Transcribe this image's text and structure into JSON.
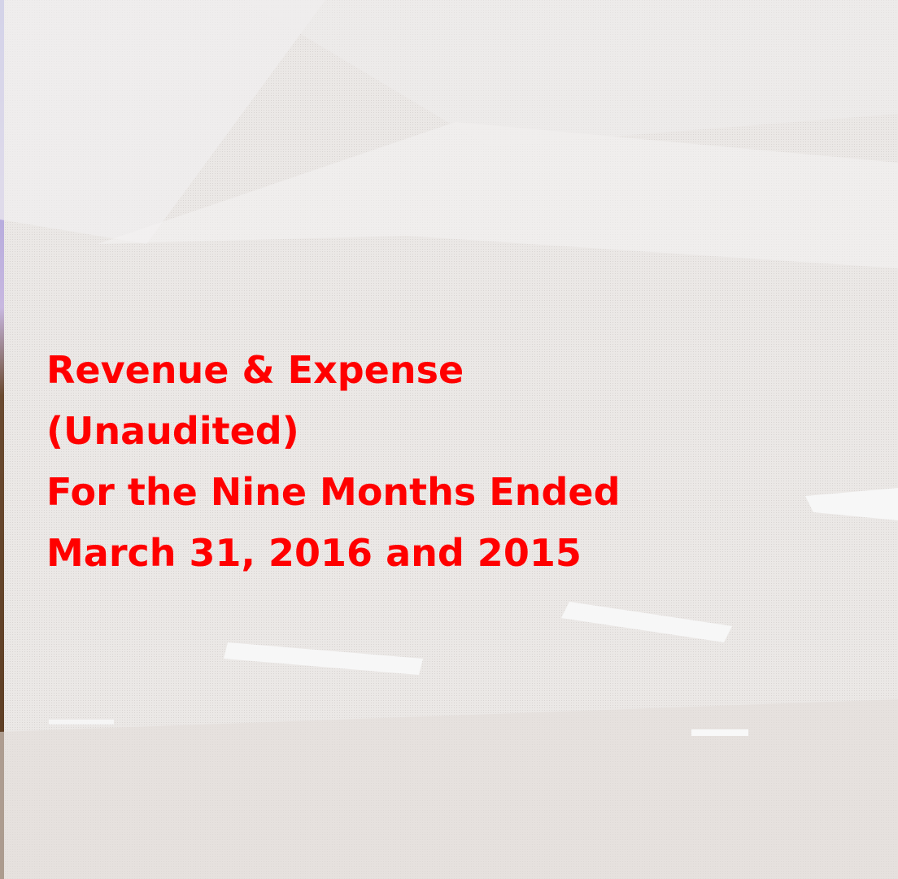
{
  "slide": {
    "title_lines": [
      "Revenue & Expense",
      "(Unaudited)",
      "For the Nine Months Ended",
      "March 31, 2016 and 2015"
    ]
  }
}
